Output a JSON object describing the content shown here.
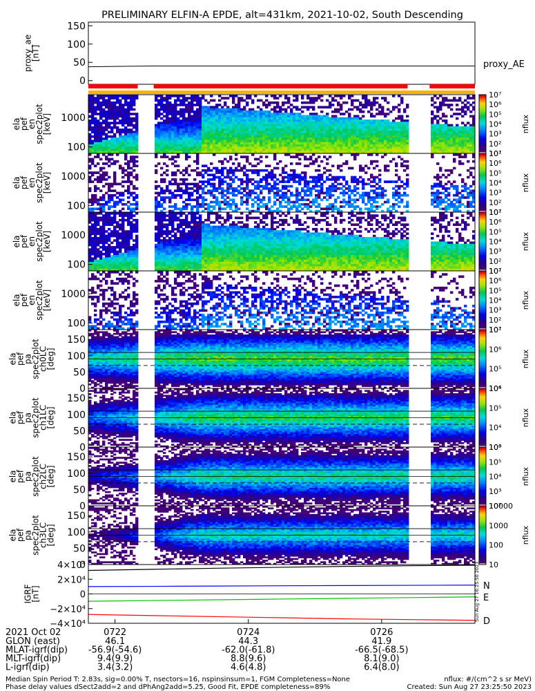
{
  "chart_data": {
    "type": "heatmap",
    "title": "PRELIMINARY ELFIN-A EPDE, alt=431km, 2021-10-02, South Descending",
    "time_ticks": [
      "0722",
      "0724",
      "0726"
    ],
    "panels": [
      {
        "id": "proxy_ae",
        "kind": "line",
        "ylabel": [
          "proxy_ae",
          "[nT]"
        ],
        "yticks": [
          0,
          50,
          100,
          150
        ],
        "ylim": [
          -10,
          160
        ],
        "side_label": "proxy_AE",
        "series": [
          {
            "values": [
              38,
              39,
              40,
              40,
              40,
              40,
              40,
              40,
              40,
              40,
              40,
              40,
              40
            ]
          }
        ]
      },
      {
        "id": "spec-en-1",
        "kind": "spec",
        "ylabel": [
          "ela",
          "pef",
          "en",
          "spec2plot",
          "[keV]"
        ],
        "ytick_labels": [
          "100",
          "1000"
        ],
        "y_scale": "log",
        "colorbar": {
          "scale": "log",
          "unit": "nflux",
          "labels": [
            "10¹",
            "10²",
            "10³",
            "10⁴",
            "10⁵",
            "10⁶",
            "10⁷"
          ]
        }
      },
      {
        "id": "spec-en-2",
        "kind": "spec",
        "ylabel": [
          "ela",
          "pef",
          "en",
          "spec2plot",
          "[keV]"
        ],
        "ytick_labels": [
          "100",
          "1000"
        ],
        "y_scale": "log",
        "colorbar": {
          "scale": "log",
          "unit": "nflux",
          "labels": [
            "10¹",
            "10²",
            "10³",
            "10⁴",
            "10⁵",
            "10⁶",
            "10⁷"
          ]
        }
      },
      {
        "id": "spec-en-3",
        "kind": "spec",
        "ylabel": [
          "ela",
          "pef",
          "en",
          "spec2plot",
          "[keV]"
        ],
        "ytick_labels": [
          "100",
          "1000"
        ],
        "y_scale": "log",
        "colorbar": {
          "scale": "log",
          "unit": "nflux",
          "labels": [
            "10¹",
            "10²",
            "10³",
            "10⁴",
            "10⁵",
            "10⁶",
            "10⁷"
          ]
        }
      },
      {
        "id": "spec-en-4",
        "kind": "spec",
        "ylabel": [
          "ela",
          "pef",
          "en",
          "spec2plot",
          "[keV]"
        ],
        "ytick_labels": [
          "100",
          "1000"
        ],
        "y_scale": "log",
        "colorbar": {
          "scale": "log",
          "unit": "nflux",
          "labels": [
            "10¹",
            "10²",
            "10³",
            "10⁴",
            "10⁵",
            "10⁶",
            "10⁷"
          ]
        }
      },
      {
        "id": "spec-pa-0",
        "kind": "spec",
        "ylabel": [
          "ela",
          "pef",
          "pa",
          "spec2plot",
          "ch0LC",
          "[deg]"
        ],
        "yticks": [
          "0",
          "50",
          "100",
          "150"
        ],
        "ylim": [
          0,
          180
        ],
        "colorbar": {
          "scale": "log",
          "unit": "nflux",
          "labels": [
            "10⁴",
            "10⁵",
            "10⁶",
            "10⁷"
          ]
        }
      },
      {
        "id": "spec-pa-1",
        "kind": "spec",
        "ylabel": [
          "ela",
          "pef",
          "pa",
          "spec2plot",
          "ch1LC",
          "[deg]"
        ],
        "yticks": [
          "0",
          "50",
          "100",
          "150"
        ],
        "ylim": [
          0,
          180
        ],
        "colorbar": {
          "scale": "log",
          "unit": "nflux",
          "labels": [
            "10³",
            "10⁴",
            "10⁵",
            "10⁶"
          ]
        }
      },
      {
        "id": "spec-pa-2",
        "kind": "spec",
        "ylabel": [
          "ela",
          "pef",
          "pa",
          "spec2plot",
          "ch2LC",
          "[deg]"
        ],
        "yticks": [
          "0",
          "50",
          "100",
          "150"
        ],
        "ylim": [
          0,
          180
        ],
        "colorbar": {
          "scale": "log",
          "unit": "nflux",
          "labels": [
            "10²",
            "10³",
            "10⁴",
            "10⁵",
            "10⁶"
          ]
        }
      },
      {
        "id": "spec-pa-3",
        "kind": "spec",
        "ylabel": [
          "ela",
          "pef",
          "pa",
          "spec2plot",
          "ch3LC",
          "[deg]"
        ],
        "yticks": [
          "0",
          "50",
          "100",
          "150"
        ],
        "ylim": [
          0,
          180
        ],
        "colorbar": {
          "scale": "log",
          "unit": "nflux",
          "labels": [
            "10",
            "100",
            "1000",
            "10000"
          ]
        }
      },
      {
        "id": "igrf",
        "kind": "line",
        "ylabel": [
          "IGRF",
          "[nT]"
        ],
        "ytick_labels": [
          "−4×10⁴",
          "−2×10⁴",
          "0",
          "2×10⁴",
          "4×10⁴"
        ],
        "ylim": [
          -40000,
          40000
        ],
        "series": [
          {
            "name": "N",
            "color": "#0000ff",
            "values": [
              10000,
              10300,
              10700,
              11100,
              11400,
              11700,
              12000
            ]
          },
          {
            "name": "E",
            "color": "#00c000",
            "values": [
              -10000,
              -9000,
              -8000,
              -7000,
              -6000,
              -5000,
              -4000
            ]
          },
          {
            "name": "D",
            "color": "#ff0000",
            "values": [
              -28000,
              -29500,
              -31000,
              -32500,
              -34000,
              -35000,
              -36000
            ]
          },
          {
            "color": "#000000",
            "values": [
              32000,
              33500,
              35000,
              36300,
              37500,
              38400,
              39000
            ]
          }
        ]
      }
    ]
  },
  "footer": {
    "date_label": "2021 Oct 02",
    "rows": [
      {
        "label": "GLON (east)",
        "values": [
          "46.1",
          "44.3",
          "41.9"
        ]
      },
      {
        "label": "MLAT-igrf(dip)",
        "values": [
          "-56.9(-54.6)",
          "-62.0(-61.8)",
          "-66.5(-68.5)"
        ]
      },
      {
        "label": "MLT-igrf(dip)",
        "values": [
          "9.4(9.9)",
          "8.8(9.6)",
          "8.1(9.0)"
        ]
      },
      {
        "label": "L-igrf(dip)",
        "values": [
          "3.4(3.2)",
          "4.6(4.8)",
          "6.4(8.0)"
        ]
      }
    ],
    "note_line1": "Median Spin Period T: 2.83s, sig=0.00% T, nsectors=16, nspinsinsum=1, FGM Completeness=None",
    "note_line2": "Phase delay values dSect2add=2 and dPhAng2add=5.25, Good Fit, EPDE completeness=89%",
    "units_note": "nflux: #/(cm^2 s sr MeV)",
    "created_note": "Created: Sun Aug 27 23:25:50 2023",
    "vertical_stamp": "Sun Aug 27 16:25:50 2023"
  }
}
